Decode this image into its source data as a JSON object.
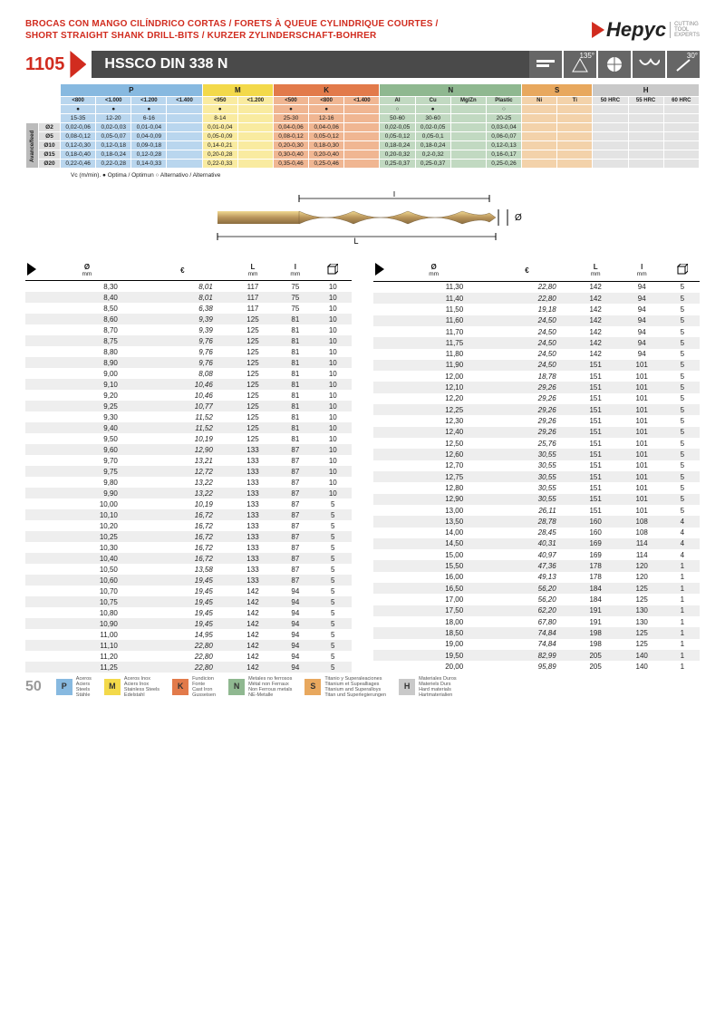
{
  "page_number": "50",
  "brand": {
    "name": "Hepyc",
    "tagline": "CUTTING\nTOOL\nEXPERTS"
  },
  "title_lines": [
    "BROCAS CON MANGO CILÍNDRICO CORTAS / FORETS À QUEUE CYLINDRIQUE COURTES /",
    "SHORT STRAIGHT SHANK DRILL-BITS / KURZER ZYLINDERSCHAFT-BOHRER"
  ],
  "product_code": "1105",
  "product_title": "HSSCO DIN 338 N",
  "tip_angle": "135°",
  "helix_angle": "30°",
  "feed_note": "Vc (m/min). ● Optima / Optimun  ○ Alternativo / Alternative",
  "diagram_labels": {
    "L": "L",
    "l": "l",
    "dia": "Ø"
  },
  "materials": {
    "groups": [
      {
        "k": "P",
        "color": "#87b9e0",
        "sub": "#b9d6ee",
        "cols": [
          {
            "h": "<800",
            "m": "●",
            "r": "15-35"
          },
          {
            "h": "<1.000",
            "m": "●",
            "r": "12-20"
          },
          {
            "h": "<1.200",
            "m": "●",
            "r": "6-16"
          },
          {
            "h": "<1.400",
            "m": "",
            "r": ""
          }
        ]
      },
      {
        "k": "M",
        "color": "#f3d94a",
        "sub": "#f9eba0",
        "cols": [
          {
            "h": "<950",
            "m": "●",
            "r": "8-14"
          },
          {
            "h": "<1.200",
            "m": "",
            "r": ""
          }
        ]
      },
      {
        "k": "K",
        "color": "#e27a4a",
        "sub": "#f0b692",
        "cols": [
          {
            "h": "<500",
            "m": "●",
            "r": "25-30"
          },
          {
            "h": "<800",
            "m": "●",
            "r": "12-16"
          },
          {
            "h": "<1.400",
            "m": "",
            "r": ""
          }
        ]
      },
      {
        "k": "N",
        "color": "#8fb890",
        "sub": "#c1d9c1",
        "cols": [
          {
            "h": "Al",
            "m": "○",
            "r": "50-60"
          },
          {
            "h": "Cu",
            "m": "●",
            "r": "30-60"
          },
          {
            "h": "Mg/Zn",
            "m": "",
            "r": ""
          },
          {
            "h": "Plastic",
            "m": "○",
            "r": "20-25"
          }
        ]
      },
      {
        "k": "S",
        "color": "#e8a85e",
        "sub": "#f3d2aa",
        "cols": [
          {
            "h": "Ni",
            "m": "",
            "r": ""
          },
          {
            "h": "Ti",
            "m": "",
            "r": ""
          }
        ]
      },
      {
        "k": "H",
        "color": "#c9c9c9",
        "sub": "#e3e3e3",
        "cols": [
          {
            "h": "50 HRC",
            "m": "",
            "r": ""
          },
          {
            "h": "55 HRC",
            "m": "",
            "r": ""
          },
          {
            "h": "60 HRC",
            "m": "",
            "r": ""
          }
        ]
      }
    ],
    "feed_label": "Avance/feed",
    "feed_rows": [
      {
        "d": "Ø2",
        "P": [
          "0,02-0,06",
          "0,02-0,03",
          "0,01-0,04",
          ""
        ],
        "M": [
          "0,01-0,04",
          ""
        ],
        "K": [
          "0,04-0,06",
          "0,04-0,06",
          ""
        ],
        "N": [
          "0,02-0,05",
          "0,02-0,05",
          "",
          "0,03-0,04"
        ],
        "S": [
          "",
          ""
        ],
        "H": [
          "",
          "",
          ""
        ]
      },
      {
        "d": "Ø5",
        "P": [
          "0,08-0,12",
          "0,05-0,07",
          "0,04-0,09",
          ""
        ],
        "M": [
          "0,05-0,09",
          ""
        ],
        "K": [
          "0,08-0,12",
          "0,05-0,12",
          ""
        ],
        "N": [
          "0,05-0,12",
          "0,05-0,1",
          "",
          "0,06-0,07"
        ],
        "S": [
          "",
          ""
        ],
        "H": [
          "",
          "",
          ""
        ]
      },
      {
        "d": "Ø10",
        "P": [
          "0,12-0,30",
          "0,12-0,18",
          "0,09-0,18",
          ""
        ],
        "M": [
          "0,14-0,21",
          ""
        ],
        "K": [
          "0,20-0,30",
          "0,18-0,30",
          ""
        ],
        "N": [
          "0,18-0,24",
          "0,18-0,24",
          "",
          "0,12-0,13"
        ],
        "S": [
          "",
          ""
        ],
        "H": [
          "",
          "",
          ""
        ]
      },
      {
        "d": "Ø15",
        "P": [
          "0,18-0,40",
          "0,18-0,24",
          "0,12-0,28",
          ""
        ],
        "M": [
          "0,20-0,28",
          ""
        ],
        "K": [
          "0,30-0,40",
          "0,20-0,40",
          ""
        ],
        "N": [
          "0,20-0,32",
          "0,2-0,32",
          "",
          "0,16-0,17"
        ],
        "S": [
          "",
          ""
        ],
        "H": [
          "",
          "",
          ""
        ]
      },
      {
        "d": "Ø20",
        "P": [
          "0,22-0,46",
          "0,22-0,28",
          "0,14-0,33",
          ""
        ],
        "M": [
          "0,22-0,33",
          ""
        ],
        "K": [
          "0,35-0,46",
          "0,25-0,46",
          ""
        ],
        "N": [
          "0,25-0,37",
          "0,25-0,37",
          "",
          "0,25-0,26"
        ],
        "S": [
          "",
          ""
        ],
        "H": [
          "",
          "",
          ""
        ]
      }
    ]
  },
  "columns": [
    {
      "h": "Ø",
      "sub": "mm"
    },
    {
      "h": "€",
      "sub": ""
    },
    {
      "h": "L",
      "sub": "mm"
    },
    {
      "h": "l",
      "sub": "mm"
    },
    {
      "h": "□",
      "sub": ""
    }
  ],
  "products_left": [
    [
      "8,30",
      "8,01",
      "117",
      "75",
      "10",
      0
    ],
    [
      "8,40",
      "8,01",
      "117",
      "75",
      "10",
      1
    ],
    [
      "8,50",
      "6,38",
      "117",
      "75",
      "10",
      0
    ],
    [
      "8,60",
      "9,39",
      "125",
      "81",
      "10",
      1
    ],
    [
      "8,70",
      "9,39",
      "125",
      "81",
      "10",
      0
    ],
    [
      "8,75",
      "9,76",
      "125",
      "81",
      "10",
      1
    ],
    [
      "8,80",
      "9,76",
      "125",
      "81",
      "10",
      0
    ],
    [
      "8,90",
      "9,76",
      "125",
      "81",
      "10",
      1
    ],
    [
      "9,00",
      "8,08",
      "125",
      "81",
      "10",
      0
    ],
    [
      "9,10",
      "10,46",
      "125",
      "81",
      "10",
      1
    ],
    [
      "9,20",
      "10,46",
      "125",
      "81",
      "10",
      0
    ],
    [
      "9,25",
      "10,77",
      "125",
      "81",
      "10",
      1
    ],
    [
      "9,30",
      "11,52",
      "125",
      "81",
      "10",
      0
    ],
    [
      "9,40",
      "11,52",
      "125",
      "81",
      "10",
      1
    ],
    [
      "9,50",
      "10,19",
      "125",
      "81",
      "10",
      0
    ],
    [
      "9,60",
      "12,90",
      "133",
      "87",
      "10",
      1
    ],
    [
      "9,70",
      "13,21",
      "133",
      "87",
      "10",
      0
    ],
    [
      "9,75",
      "12,72",
      "133",
      "87",
      "10",
      1
    ],
    [
      "9,80",
      "13,22",
      "133",
      "87",
      "10",
      0
    ],
    [
      "9,90",
      "13,22",
      "133",
      "87",
      "10",
      1
    ],
    [
      "10,00",
      "10,19",
      "133",
      "87",
      "5",
      0
    ],
    [
      "10,10",
      "16,72",
      "133",
      "87",
      "5",
      1
    ],
    [
      "10,20",
      "16,72",
      "133",
      "87",
      "5",
      0
    ],
    [
      "10,25",
      "16,72",
      "133",
      "87",
      "5",
      1
    ],
    [
      "10,30",
      "16,72",
      "133",
      "87",
      "5",
      0
    ],
    [
      "10,40",
      "16,72",
      "133",
      "87",
      "5",
      1
    ],
    [
      "10,50",
      "13,58",
      "133",
      "87",
      "5",
      0
    ],
    [
      "10,60",
      "19,45",
      "133",
      "87",
      "5",
      1
    ],
    [
      "10,70",
      "19,45",
      "142",
      "94",
      "5",
      0
    ],
    [
      "10,75",
      "19,45",
      "142",
      "94",
      "5",
      1
    ],
    [
      "10,80",
      "19,45",
      "142",
      "94",
      "5",
      0
    ],
    [
      "10,90",
      "19,45",
      "142",
      "94",
      "5",
      1
    ],
    [
      "11,00",
      "14,95",
      "142",
      "94",
      "5",
      0
    ],
    [
      "11,10",
      "22,80",
      "142",
      "94",
      "5",
      1
    ],
    [
      "11,20",
      "22,80",
      "142",
      "94",
      "5",
      0
    ],
    [
      "11,25",
      "22,80",
      "142",
      "94",
      "5",
      1
    ]
  ],
  "products_right": [
    [
      "11,30",
      "22,80",
      "142",
      "94",
      "5",
      0
    ],
    [
      "11,40",
      "22,80",
      "142",
      "94",
      "5",
      1
    ],
    [
      "11,50",
      "19,18",
      "142",
      "94",
      "5",
      0
    ],
    [
      "11,60",
      "24,50",
      "142",
      "94",
      "5",
      1
    ],
    [
      "11,70",
      "24,50",
      "142",
      "94",
      "5",
      0
    ],
    [
      "11,75",
      "24,50",
      "142",
      "94",
      "5",
      1
    ],
    [
      "11,80",
      "24,50",
      "142",
      "94",
      "5",
      0
    ],
    [
      "11,90",
      "24,50",
      "151",
      "101",
      "5",
      1
    ],
    [
      "12,00",
      "18,78",
      "151",
      "101",
      "5",
      0
    ],
    [
      "12,10",
      "29,26",
      "151",
      "101",
      "5",
      1
    ],
    [
      "12,20",
      "29,26",
      "151",
      "101",
      "5",
      0
    ],
    [
      "12,25",
      "29,26",
      "151",
      "101",
      "5",
      1
    ],
    [
      "12,30",
      "29,26",
      "151",
      "101",
      "5",
      0
    ],
    [
      "12,40",
      "29,26",
      "151",
      "101",
      "5",
      1
    ],
    [
      "12,50",
      "25,76",
      "151",
      "101",
      "5",
      0
    ],
    [
      "12,60",
      "30,55",
      "151",
      "101",
      "5",
      1
    ],
    [
      "12,70",
      "30,55",
      "151",
      "101",
      "5",
      0
    ],
    [
      "12,75",
      "30,55",
      "151",
      "101",
      "5",
      1
    ],
    [
      "12,80",
      "30,55",
      "151",
      "101",
      "5",
      0
    ],
    [
      "12,90",
      "30,55",
      "151",
      "101",
      "5",
      1
    ],
    [
      "13,00",
      "26,11",
      "151",
      "101",
      "5",
      0
    ],
    [
      "13,50",
      "28,78",
      "160",
      "108",
      "4",
      1
    ],
    [
      "14,00",
      "28,45",
      "160",
      "108",
      "4",
      0
    ],
    [
      "14,50",
      "40,31",
      "169",
      "114",
      "4",
      1
    ],
    [
      "15,00",
      "40,97",
      "169",
      "114",
      "4",
      0
    ],
    [
      "15,50",
      "47,36",
      "178",
      "120",
      "1",
      1
    ],
    [
      "16,00",
      "49,13",
      "178",
      "120",
      "1",
      0
    ],
    [
      "16,50",
      "56,20",
      "184",
      "125",
      "1",
      1
    ],
    [
      "17,00",
      "56,20",
      "184",
      "125",
      "1",
      0
    ],
    [
      "17,50",
      "62,20",
      "191",
      "130",
      "1",
      1
    ],
    [
      "18,00",
      "67,80",
      "191",
      "130",
      "1",
      0
    ],
    [
      "18,50",
      "74,84",
      "198",
      "125",
      "1",
      1
    ],
    [
      "19,00",
      "74,84",
      "198",
      "125",
      "1",
      0
    ],
    [
      "19,50",
      "82,99",
      "205",
      "140",
      "1",
      1
    ],
    [
      "20,00",
      "95,89",
      "205",
      "140",
      "1",
      0
    ]
  ],
  "legend": [
    {
      "k": "P",
      "c": "#87b9e0",
      "t": "Aceros\nAciers\nSteels\nStähle"
    },
    {
      "k": "M",
      "c": "#f3d94a",
      "t": "Aceros Inox\nAciers Inox\nStainless Steels\nEdelstahl"
    },
    {
      "k": "K",
      "c": "#e27a4a",
      "t": "Fundicion\nFonte\nCast Iron\nGusseisen"
    },
    {
      "k": "N",
      "c": "#8fb890",
      "t": "Metales no ferrosos\nMétal non Ferraux\nNon Ferrous metals\nNE-Metalle"
    },
    {
      "k": "S",
      "c": "#e8a85e",
      "t": "Titanio y Superaleaciones\nTitanium et Supealliages\nTitanium and Superalloys\nTitan und Superlegierungen"
    },
    {
      "k": "H",
      "c": "#c9c9c9",
      "t": "Materiales Duros\nMateriels Durs\nHard materials\nHartmaterialien"
    }
  ]
}
